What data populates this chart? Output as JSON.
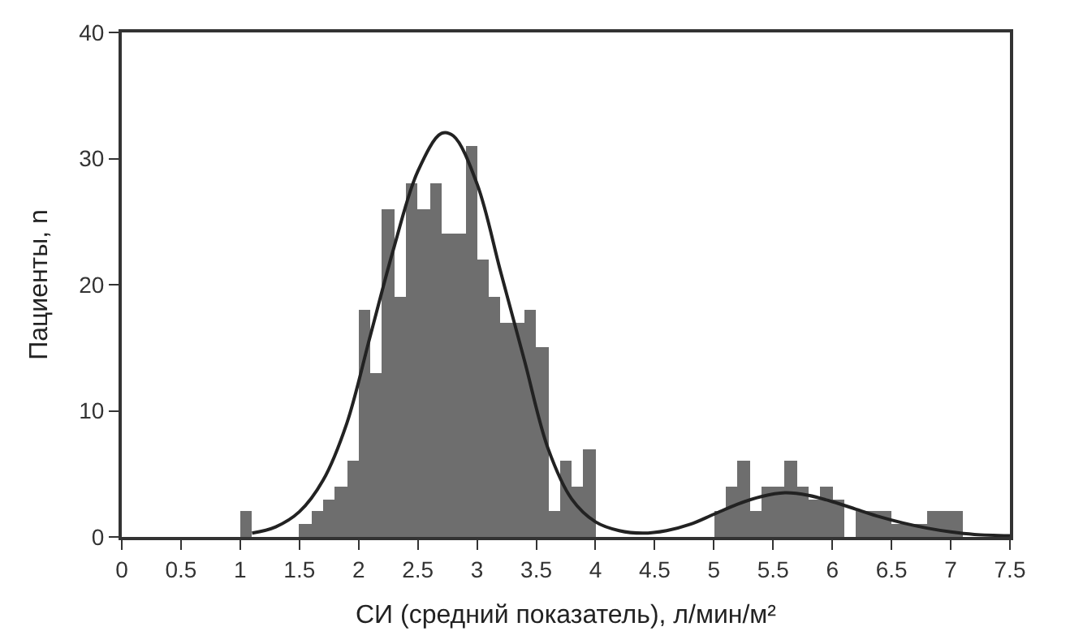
{
  "chart_data": {
    "type": "histogram",
    "xlabel": "СИ (средний показатель), л/мин/м²",
    "ylabel": "Пациенты, n",
    "bins": [
      1.0,
      1.1,
      1.2,
      1.3,
      1.4,
      1.5,
      1.6,
      1.7,
      1.8,
      1.9,
      2.0,
      2.1,
      2.2,
      2.3,
      2.4,
      2.5,
      2.6,
      2.7,
      2.8,
      2.9,
      3.0,
      3.1,
      3.2,
      3.3,
      3.4,
      3.5,
      3.6,
      3.7,
      3.8,
      3.9,
      4.0,
      4.1,
      4.2,
      4.3,
      4.4,
      4.5,
      4.6,
      4.7,
      4.8,
      4.9,
      5.0,
      5.1,
      5.2,
      5.3,
      5.4,
      5.5,
      5.6,
      5.7,
      5.8,
      5.9,
      6.0,
      6.1,
      6.2,
      6.3,
      6.4,
      6.5,
      6.6,
      6.7,
      6.8,
      6.9,
      7.0,
      7.1
    ],
    "values": [
      2,
      0,
      0,
      0,
      0,
      1,
      2,
      3,
      4,
      6,
      18,
      13,
      26,
      19,
      28,
      26,
      28,
      24,
      24,
      31,
      22,
      19,
      17,
      17,
      18,
      15,
      2,
      6,
      4,
      7,
      0,
      0,
      0,
      0,
      0,
      0,
      0,
      0,
      0,
      0,
      2,
      4,
      6,
      2,
      4,
      4,
      6,
      4,
      3,
      4,
      3,
      0,
      2,
      2,
      2,
      1,
      1,
      1,
      2,
      2,
      2
    ],
    "color": "#6e6e6e",
    "series": [
      {
        "type": "line",
        "color": "#222222",
        "x": [
          1.1,
          1.3,
          1.5,
          1.7,
          1.9,
          2.1,
          2.3,
          2.5,
          2.7,
          2.8,
          3.0,
          3.2,
          3.4,
          3.6,
          3.8,
          4.0,
          4.2,
          4.4,
          4.6,
          4.8,
          5.0,
          5.2,
          5.4,
          5.6,
          5.8,
          6.0,
          6.2,
          6.4,
          6.6,
          6.8,
          7.0,
          7.2,
          7.5
        ],
        "values": [
          0.3,
          0.8,
          2,
          4.5,
          9,
          16,
          23,
          29,
          32,
          31.8,
          28,
          21,
          14,
          7,
          3,
          1.2,
          0.5,
          0.3,
          0.5,
          1,
          1.8,
          2.6,
          3.2,
          3.5,
          3.3,
          2.8,
          2.2,
          1.6,
          1.1,
          0.7,
          0.4,
          0.2,
          0.1
        ]
      }
    ],
    "xlim": [
      0,
      7.5
    ],
    "xticks": [
      0,
      0.5,
      1,
      1.5,
      2,
      2.5,
      3,
      3.5,
      4,
      4.5,
      5,
      5.5,
      6,
      6.5,
      7,
      7.5
    ],
    "ylim": [
      0,
      40
    ],
    "yticks": [
      0,
      10,
      20,
      30,
      40
    ]
  }
}
